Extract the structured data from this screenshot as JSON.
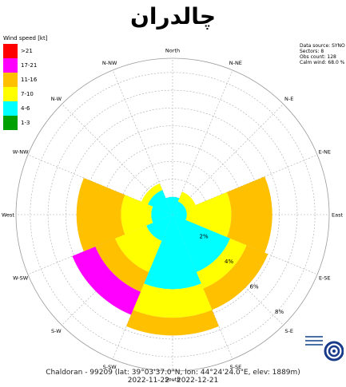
{
  "title": "چالدران",
  "legend": {
    "title": "Wind speed [kt]",
    "items": [
      {
        "label": ">21",
        "color": "#ff0000"
      },
      {
        "label": "17-21",
        "color": "#ff00ff"
      },
      {
        "label": "11-16",
        "color": "#ffc000"
      },
      {
        "label": "7-10",
        "color": "#ffff00"
      },
      {
        "label": "4-6",
        "color": "#00ffff"
      },
      {
        "label": "1-3",
        "color": "#00a000"
      }
    ]
  },
  "meta": {
    "source": "Data source: SYNO",
    "sectors": "Sectors: 8",
    "obs": "Obs count: 128",
    "calm": "Calm wind: 68.0 %"
  },
  "footer": {
    "line1": "Chaldoran - 99209 (lat: 39°03'37.0\"N, lon: 44°24'24.0\"E, elev: 1889m)",
    "line2": "2022-11-22 - 2022-12-21"
  },
  "chart_data": {
    "type": "windrose",
    "direction_labels": [
      "North",
      "N-NE",
      "N-E",
      "E-NE",
      "East",
      "E-SE",
      "S-E",
      "S-SE",
      "South",
      "S-SW",
      "S-W",
      "W-SW",
      "West",
      "W-NW",
      "N-W",
      "N-NW"
    ],
    "ring_labels": [
      "2%",
      "4%",
      "6%",
      "8%"
    ],
    "r_max": 8.8,
    "bins": [
      "4-6",
      "7-10",
      "11-16",
      "17-21"
    ],
    "sectors": [
      {
        "direction": "North",
        "cumulative": [
          1.0,
          1.0,
          1.0,
          1.0
        ]
      },
      {
        "direction": "N-E",
        "cumulative": [
          0.8,
          1.4,
          1.4,
          1.4
        ]
      },
      {
        "direction": "East",
        "cumulative": [
          0.8,
          3.3,
          5.6,
          5.6
        ]
      },
      {
        "direction": "S-E",
        "cumulative": [
          3.5,
          4.5,
          5.8,
          5.8
        ]
      },
      {
        "direction": "South",
        "cumulative": [
          4.2,
          5.8,
          6.8,
          6.8
        ]
      },
      {
        "direction": "S-W",
        "cumulative": [
          1.6,
          3.5,
          4.7,
          6.1
        ]
      },
      {
        "direction": "West",
        "cumulative": [
          1.2,
          2.9,
          5.4,
          5.4
        ]
      },
      {
        "direction": "N-W",
        "cumulative": [
          1.5,
          1.9,
          1.9,
          1.9
        ]
      }
    ]
  }
}
